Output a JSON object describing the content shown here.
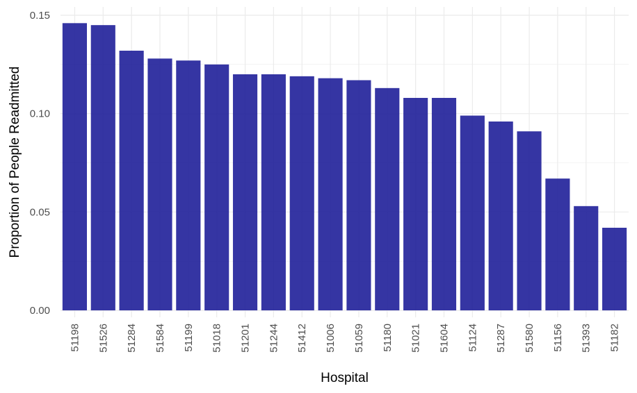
{
  "chart_data": {
    "type": "bar",
    "title": "",
    "xlabel": "Hospital",
    "ylabel": "Proportion of People Readmitted",
    "categories": [
      "51198",
      "51526",
      "51284",
      "51584",
      "51199",
      "51018",
      "51201",
      "51244",
      "51412",
      "51006",
      "51059",
      "51180",
      "51021",
      "51604",
      "51124",
      "51287",
      "51580",
      "51156",
      "51393",
      "51182"
    ],
    "values": [
      0.146,
      0.145,
      0.132,
      0.128,
      0.127,
      0.125,
      0.12,
      0.12,
      0.119,
      0.118,
      0.117,
      0.113,
      0.108,
      0.108,
      0.099,
      0.096,
      0.091,
      0.067,
      0.053,
      0.042
    ],
    "ylim": [
      0,
      0.15
    ],
    "yticks": [
      0.0,
      0.05,
      0.1,
      0.15
    ],
    "ytick_labels": [
      "0.00",
      "0.05",
      "0.10",
      "0.15"
    ],
    "grid": true,
    "legend": "none",
    "bar_color": "#191996",
    "grid_color": "#ebebeb"
  }
}
